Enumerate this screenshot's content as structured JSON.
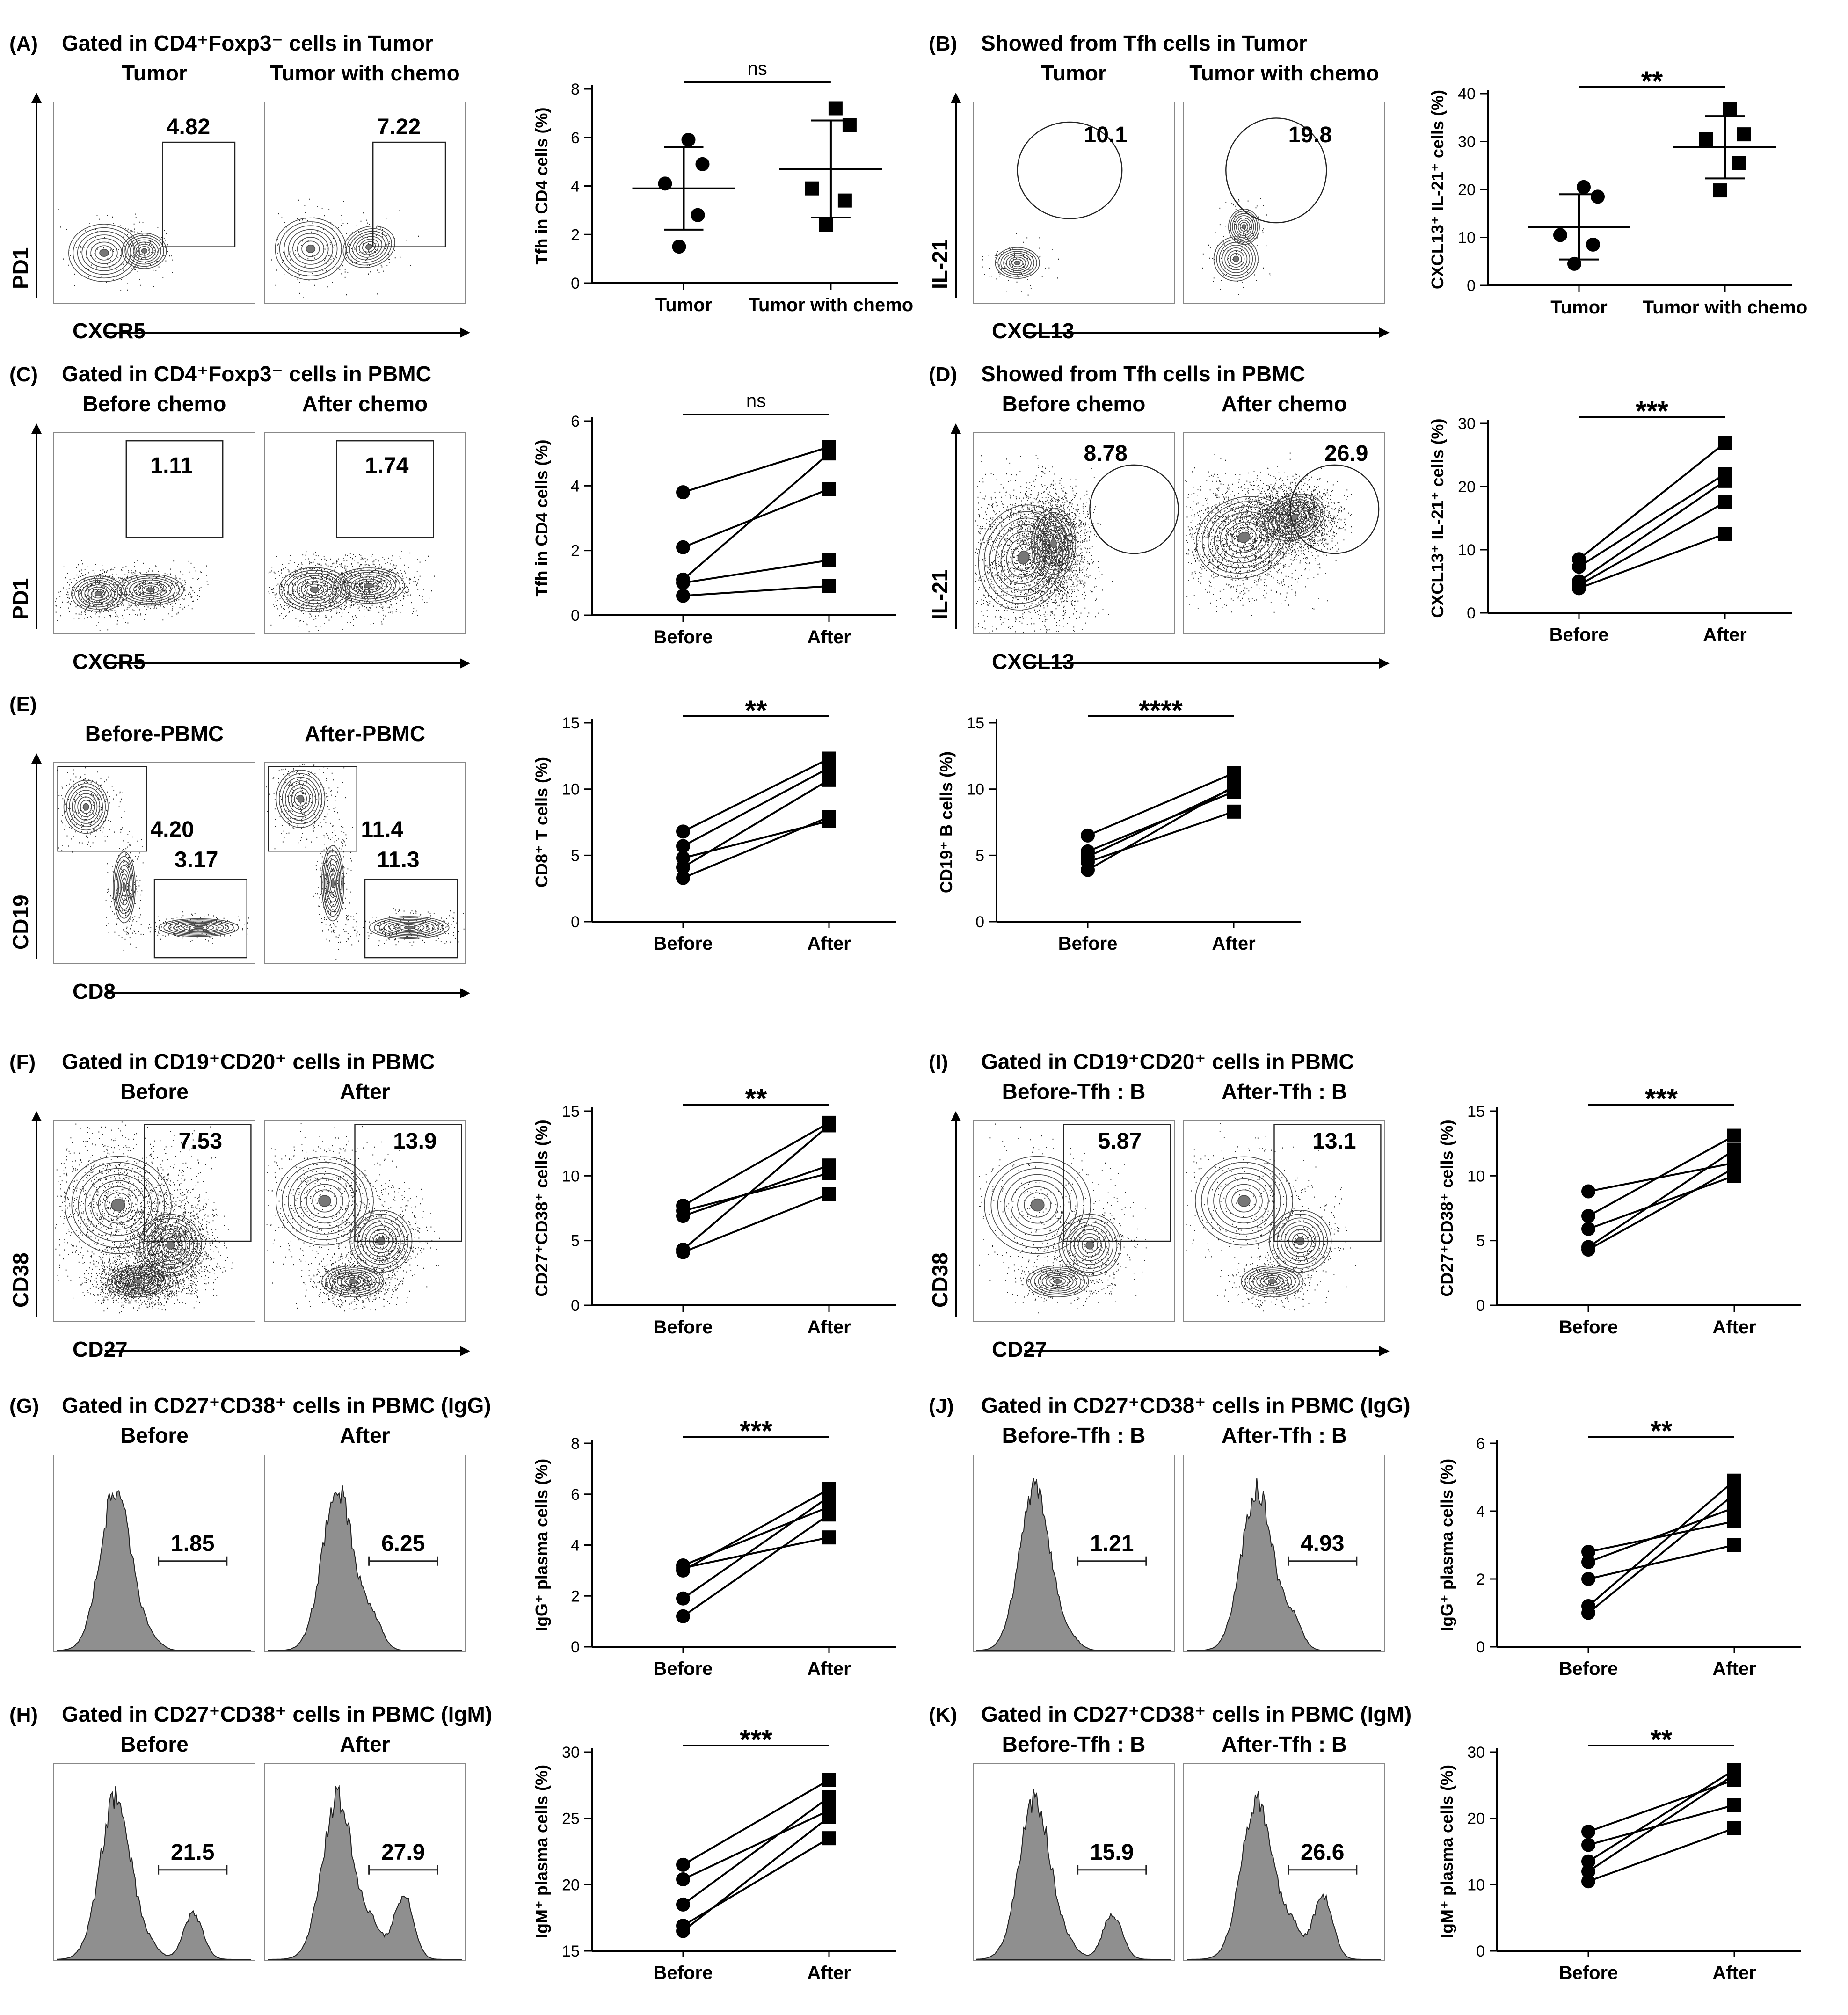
{
  "figure": {
    "panels": {
      "A": {
        "letter": "(A)",
        "title": "Gated in CD4⁺Foxp3⁻ cells in Tumor",
        "left_title": "Tumor",
        "right_title": "Tumor with chemo",
        "y_marker": "PD1",
        "x_marker": "CXCR5",
        "left_value": "4.82",
        "right_value": "7.22"
      },
      "B": {
        "letter": "(B)",
        "title": "Showed from Tfh cells in Tumor",
        "left_title": "Tumor",
        "right_title": "Tumor with chemo",
        "y_marker": "IL-21",
        "x_marker": "CXCL13",
        "left_value": "10.1",
        "right_value": "19.8"
      },
      "C": {
        "letter": "(C)",
        "title": "Gated in CD4⁺Foxp3⁻ cells in PBMC",
        "left_title": "Before chemo",
        "right_title": "After chemo",
        "y_marker": "PD1",
        "x_marker": "CXCR5",
        "left_value": "1.11",
        "right_value": "1.74"
      },
      "D": {
        "letter": "(D)",
        "title": "Showed from Tfh cells in PBMC",
        "left_title": "Before chemo",
        "right_title": "After chemo",
        "y_marker": "IL-21",
        "x_marker": "CXCL13",
        "left_value": "8.78",
        "right_value": "26.9"
      },
      "E": {
        "letter": "(E)",
        "left_title": "Before-PBMC",
        "right_title": "After-PBMC",
        "y_marker": "CD19",
        "x_marker": "CD8",
        "left_values": [
          "4.20",
          "3.17"
        ],
        "right_values": [
          "11.4",
          "11.3"
        ]
      },
      "F": {
        "letter": "(F)",
        "title": "Gated in CD19⁺CD20⁺ cells in PBMC",
        "left_title": "Before",
        "right_title": "After",
        "y_marker": "CD38",
        "x_marker": "CD27",
        "left_value": "7.53",
        "right_value": "13.9"
      },
      "I": {
        "letter": "(I)",
        "title": "Gated in CD19⁺CD20⁺ cells in PBMC",
        "left_title": "Before-Tfh : B",
        "right_title": "After-Tfh : B",
        "y_marker": "CD38",
        "x_marker": "CD27",
        "left_value": "5.87",
        "right_value": "13.1"
      },
      "G": {
        "letter": "(G)",
        "title": "Gated in CD27⁺CD38⁺ cells in PBMC (IgG)",
        "left_title": "Before",
        "right_title": "After",
        "left_value": "1.85",
        "right_value": "6.25"
      },
      "J": {
        "letter": "(J)",
        "title": "Gated in CD27⁺CD38⁺ cells in PBMC (IgG)",
        "left_title": "Before-Tfh : B",
        "right_title": "After-Tfh : B",
        "left_value": "1.21",
        "right_value": "4.93"
      },
      "H": {
        "letter": "(H)",
        "title": "Gated in CD27⁺CD38⁺ cells in PBMC (IgM)",
        "left_title": "Before",
        "right_title": "After",
        "left_value": "21.5",
        "right_value": "27.9"
      },
      "K": {
        "letter": "(K)",
        "title": "Gated in CD27⁺CD38⁺ cells in PBMC (IgM)",
        "left_title": "Before-Tfh : B",
        "right_title": "After-Tfh : B",
        "left_value": "15.9",
        "right_value": "26.6"
      }
    }
  },
  "chart_data": [
    {
      "id": "A",
      "type": "scatter",
      "style": "mean-sd",
      "ylabel": "Tfh in CD4 cells (%)",
      "categories": [
        "Tumor",
        "Tumor with chemo"
      ],
      "ylim": [
        0,
        8
      ],
      "yticks": [
        0,
        2,
        4,
        6,
        8
      ],
      "significance": "ns",
      "series": [
        {
          "name": "Tumor",
          "marker": "circle",
          "values": [
            5.9,
            4.9,
            4.1,
            2.8,
            1.5
          ],
          "mean": 3.9,
          "sd": 1.7
        },
        {
          "name": "Tumor with chemo",
          "marker": "square",
          "values": [
            7.2,
            6.5,
            3.9,
            3.4,
            2.4
          ],
          "mean": 4.7,
          "sd": 2.0
        }
      ]
    },
    {
      "id": "B",
      "type": "scatter",
      "style": "mean-sd",
      "ylabel": "CXCL13⁺ IL-21⁺ cells (%)",
      "categories": [
        "Tumor",
        "Tumor with chemo"
      ],
      "ylim": [
        0,
        40
      ],
      "yticks": [
        0,
        10,
        20,
        30,
        40
      ],
      "significance": "**",
      "series": [
        {
          "name": "Tumor",
          "marker": "circle",
          "values": [
            20.5,
            18.5,
            10.5,
            8.5,
            4.5
          ],
          "mean": 12.2,
          "sd": 6.8
        },
        {
          "name": "Tumor with chemo",
          "marker": "square",
          "values": [
            36.8,
            31.5,
            30.5,
            25.5,
            19.8
          ],
          "mean": 28.8,
          "sd": 6.5
        }
      ]
    },
    {
      "id": "C",
      "type": "line",
      "style": "paired",
      "ylabel": "Tfh in CD4 cells (%)",
      "categories": [
        "Before",
        "After"
      ],
      "ylim": [
        0,
        6
      ],
      "yticks": [
        0,
        2,
        4,
        6
      ],
      "significance": "ns",
      "pairs": [
        [
          3.8,
          5.2
        ],
        [
          2.1,
          3.9
        ],
        [
          1.1,
          5.0
        ],
        [
          1.0,
          1.7
        ],
        [
          0.6,
          0.9
        ]
      ]
    },
    {
      "id": "D",
      "type": "line",
      "style": "paired",
      "ylabel": "CXCL13⁺ IL-21⁺ cells (%)",
      "categories": [
        "Before",
        "After"
      ],
      "ylim": [
        0,
        30
      ],
      "yticks": [
        0,
        10,
        20,
        30
      ],
      "significance": "***",
      "pairs": [
        [
          8.5,
          26.9
        ],
        [
          7.3,
          22.0
        ],
        [
          5.0,
          20.9
        ],
        [
          4.4,
          17.5
        ],
        [
          3.9,
          12.5
        ]
      ]
    },
    {
      "id": "E1",
      "type": "line",
      "style": "paired",
      "ylabel": "CD8⁺ T cells (%)",
      "categories": [
        "Before",
        "After"
      ],
      "ylim": [
        0,
        15
      ],
      "yticks": [
        0,
        5,
        10,
        15
      ],
      "significance": "**",
      "pairs": [
        [
          6.8,
          12.3
        ],
        [
          5.7,
          11.6
        ],
        [
          4.8,
          7.6
        ],
        [
          4.1,
          10.7
        ],
        [
          3.3,
          7.9
        ]
      ]
    },
    {
      "id": "E2",
      "type": "line",
      "style": "paired",
      "ylabel": "CD19⁺ B cells (%)",
      "categories": [
        "Before",
        "After"
      ],
      "ylim": [
        0,
        15
      ],
      "yticks": [
        0,
        5,
        10,
        15
      ],
      "significance": "****",
      "pairs": [
        [
          6.5,
          11.2
        ],
        [
          5.3,
          9.8
        ],
        [
          4.9,
          10.1
        ],
        [
          4.5,
          8.3
        ],
        [
          3.9,
          10.2
        ]
      ]
    },
    {
      "id": "F",
      "type": "line",
      "style": "paired",
      "ylabel": "CD27⁺CD38⁺ cells (%)",
      "categories": [
        "Before",
        "After"
      ],
      "ylim": [
        0,
        15
      ],
      "yticks": [
        0,
        5,
        10,
        15
      ],
      "significance": "**",
      "pairs": [
        [
          7.7,
          14.1
        ],
        [
          7.3,
          10.2
        ],
        [
          6.9,
          10.8
        ],
        [
          4.3,
          13.9
        ],
        [
          4.1,
          8.6
        ]
      ]
    },
    {
      "id": "I",
      "type": "line",
      "style": "paired",
      "ylabel": "CD27⁺CD38⁺ cells (%)",
      "categories": [
        "Before",
        "After"
      ],
      "ylim": [
        0,
        15
      ],
      "yticks": [
        0,
        5,
        10,
        15
      ],
      "significance": "***",
      "pairs": [
        [
          8.8,
          11.0
        ],
        [
          6.9,
          13.1
        ],
        [
          5.9,
          10.0
        ],
        [
          4.5,
          12.0
        ],
        [
          4.3,
          10.6
        ]
      ]
    },
    {
      "id": "G",
      "type": "line",
      "style": "paired",
      "ylabel": "IgG⁺ plasma cells (%)",
      "categories": [
        "Before",
        "After"
      ],
      "ylim": [
        0,
        8
      ],
      "yticks": [
        0,
        2,
        4,
        6,
        8
      ],
      "significance": "***",
      "pairs": [
        [
          3.2,
          5.5
        ],
        [
          3.0,
          6.2
        ],
        [
          3.1,
          4.3
        ],
        [
          1.9,
          5.9
        ],
        [
          1.2,
          5.2
        ]
      ]
    },
    {
      "id": "J",
      "type": "line",
      "style": "paired",
      "ylabel": "IgG⁺ plasma cells (%)",
      "categories": [
        "Before",
        "After"
      ],
      "ylim": [
        0,
        6
      ],
      "yticks": [
        0,
        2,
        4,
        6
      ],
      "significance": "**",
      "pairs": [
        [
          2.8,
          3.7
        ],
        [
          2.5,
          4.1
        ],
        [
          2.0,
          3.0
        ],
        [
          1.2,
          4.9
        ],
        [
          1.0,
          4.5
        ]
      ]
    },
    {
      "id": "H",
      "type": "line",
      "style": "paired",
      "ylabel": "IgM⁺ plasma cells (%)",
      "categories": [
        "Before",
        "After"
      ],
      "ylim": [
        15,
        30
      ],
      "yticks": [
        15,
        20,
        25,
        30
      ],
      "significance": "***",
      "pairs": [
        [
          21.5,
          27.9
        ],
        [
          20.4,
          25.6
        ],
        [
          18.5,
          26.6
        ],
        [
          16.9,
          23.5
        ],
        [
          16.5,
          25.1
        ]
      ]
    },
    {
      "id": "K",
      "type": "line",
      "style": "paired",
      "ylabel": "IgM⁺ plasma cells (%)",
      "categories": [
        "Before",
        "After"
      ],
      "ylim": [
        0,
        30
      ],
      "yticks": [
        0,
        10,
        20,
        30
      ],
      "significance": "**",
      "pairs": [
        [
          18.0,
          25.8
        ],
        [
          16.0,
          22.0
        ],
        [
          13.5,
          27.3
        ],
        [
          12.0,
          26.6
        ],
        [
          10.5,
          18.5
        ]
      ]
    }
  ]
}
